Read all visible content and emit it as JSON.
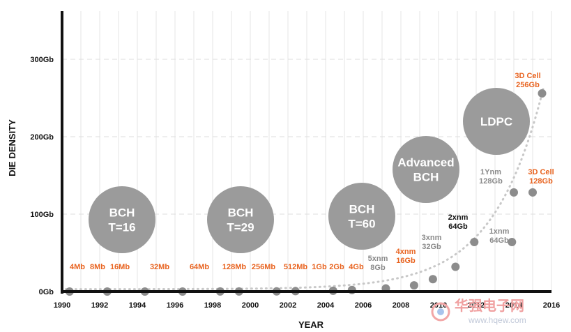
{
  "chart_data": {
    "type": "scatter",
    "xlabel": "YEAR",
    "ylabel": "DIE DENSITY",
    "xlim": [
      1990,
      2016
    ],
    "ylim": [
      0,
      300
    ],
    "x_ticks": [
      "1990",
      "1992",
      "1994",
      "1996",
      "1998",
      "2000",
      "2002",
      "2004",
      "2006",
      "2008",
      "2010",
      "2012",
      "2014",
      "2016"
    ],
    "y_ticks": [
      {
        "value": 0,
        "label": "0Gb"
      },
      {
        "value": 100,
        "label": "100Gb"
      },
      {
        "value": 200,
        "label": "200Gb"
      },
      {
        "value": 300,
        "label": "300Gb"
      }
    ],
    "grid": true,
    "colors": {
      "highlight": "#e8621e",
      "gray": "#8a8a8a",
      "dark": "#111111",
      "point": "#8c8c8c",
      "bubble": "#9b9b9b",
      "trend": "#c8c8c8"
    },
    "points": [
      {
        "x": 1990.4,
        "y": 0.004,
        "label_lines": [
          "4Mb"
        ],
        "color": "highlight"
      },
      {
        "x": 1992.4,
        "y": 0.008,
        "label_lines": [
          "8Mb"
        ],
        "color": "highlight"
      },
      {
        "x": 1994.4,
        "y": 0.016,
        "label_lines": [
          "16Mb"
        ],
        "color": "highlight"
      },
      {
        "x": 1996.4,
        "y": 0.032,
        "label_lines": [
          "32Mb"
        ],
        "color": "highlight"
      },
      {
        "x": 1998.4,
        "y": 0.064,
        "label_lines": [
          "64Mb"
        ],
        "color": "highlight"
      },
      {
        "x": 1999.4,
        "y": 0.128,
        "label_lines": [
          "128Mb"
        ],
        "color": "highlight"
      },
      {
        "x": 2001.4,
        "y": 0.256,
        "label_lines": [
          "256Mb"
        ],
        "color": "highlight"
      },
      {
        "x": 2002.4,
        "y": 0.512,
        "label_lines": [
          "512Mb"
        ],
        "color": "highlight"
      },
      {
        "x": 2004.4,
        "y": 1,
        "label_lines": [
          "1Gb"
        ],
        "color": "highlight"
      },
      {
        "x": 2005.4,
        "y": 2,
        "label_lines": [
          "2Gb"
        ],
        "color": "highlight"
      },
      {
        "x": 2007.2,
        "y": 4,
        "label_lines": [
          "4Gb"
        ],
        "color": "highlight"
      },
      {
        "x": 2008.7,
        "y": 8,
        "label_lines": [
          "5xnm",
          "8Gb"
        ],
        "color": "gray"
      },
      {
        "x": 2009.7,
        "y": 16,
        "label_lines": [
          "4xnm",
          "16Gb"
        ],
        "color": "highlight"
      },
      {
        "x": 2010.9,
        "y": 32,
        "label_lines": [
          "3xnm",
          "32Gb"
        ],
        "color": "gray"
      },
      {
        "x": 2011.9,
        "y": 64,
        "label_lines": [
          "2xnm",
          "64Gb"
        ],
        "color": "dark"
      },
      {
        "x": 2013.9,
        "y": 64,
        "label_lines": [
          "1xnm",
          "64Gb"
        ],
        "color": "gray"
      },
      {
        "x": 2014.0,
        "y": 128,
        "label_lines": [
          "1Ynm",
          "128Gb"
        ],
        "color": "gray"
      },
      {
        "x": 2015.0,
        "y": 128,
        "label_lines": [
          "3D Cell",
          "128Gb"
        ],
        "color": "highlight"
      },
      {
        "x": 2015.5,
        "y": 256,
        "label_lines": [
          "3D Cell",
          "256Gb"
        ],
        "color": "highlight"
      }
    ],
    "ecc_bubbles": [
      {
        "lines": [
          "BCH",
          "T=16"
        ]
      },
      {
        "lines": [
          "BCH",
          "T=29"
        ]
      },
      {
        "lines": [
          "BCH",
          "T=60"
        ]
      },
      {
        "lines": [
          "Advanced",
          "BCH"
        ]
      },
      {
        "lines": [
          "LDPC"
        ]
      }
    ]
  },
  "watermark": {
    "text_cn": "华强电子网",
    "url": "www.hqew.com"
  }
}
